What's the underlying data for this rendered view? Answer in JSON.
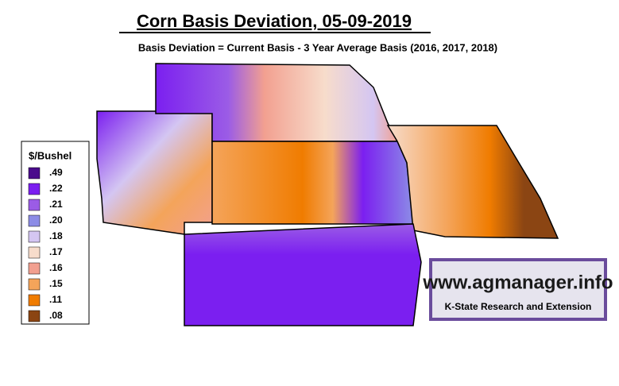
{
  "header": {
    "title": "Corn Basis Deviation, 05-09-2019",
    "subtitle": "Basis Deviation = Current Basis - 3 Year Average Basis (2016, 2017, 2018)"
  },
  "legend": {
    "title": "$/Bushel",
    "items": [
      {
        "label": ".49",
        "color": "#4a0c8c"
      },
      {
        "label": ".22",
        "color": "#7b1ff0"
      },
      {
        "label": ".21",
        "color": "#9b5ce6"
      },
      {
        "label": ".20",
        "color": "#8c8ce6"
      },
      {
        "label": ".18",
        "color": "#d4c6f2"
      },
      {
        "label": ".17",
        "color": "#f7dccb"
      },
      {
        "label": ".16",
        "color": "#f2a090"
      },
      {
        "label": ".15",
        "color": "#f4a45a"
      },
      {
        "label": ".11",
        "color": "#f07c00"
      },
      {
        "label": ".08",
        "color": "#8b4513"
      }
    ]
  },
  "logo": {
    "url": "www.agmanager.info",
    "org": "K-State Research and Extension"
  }
}
